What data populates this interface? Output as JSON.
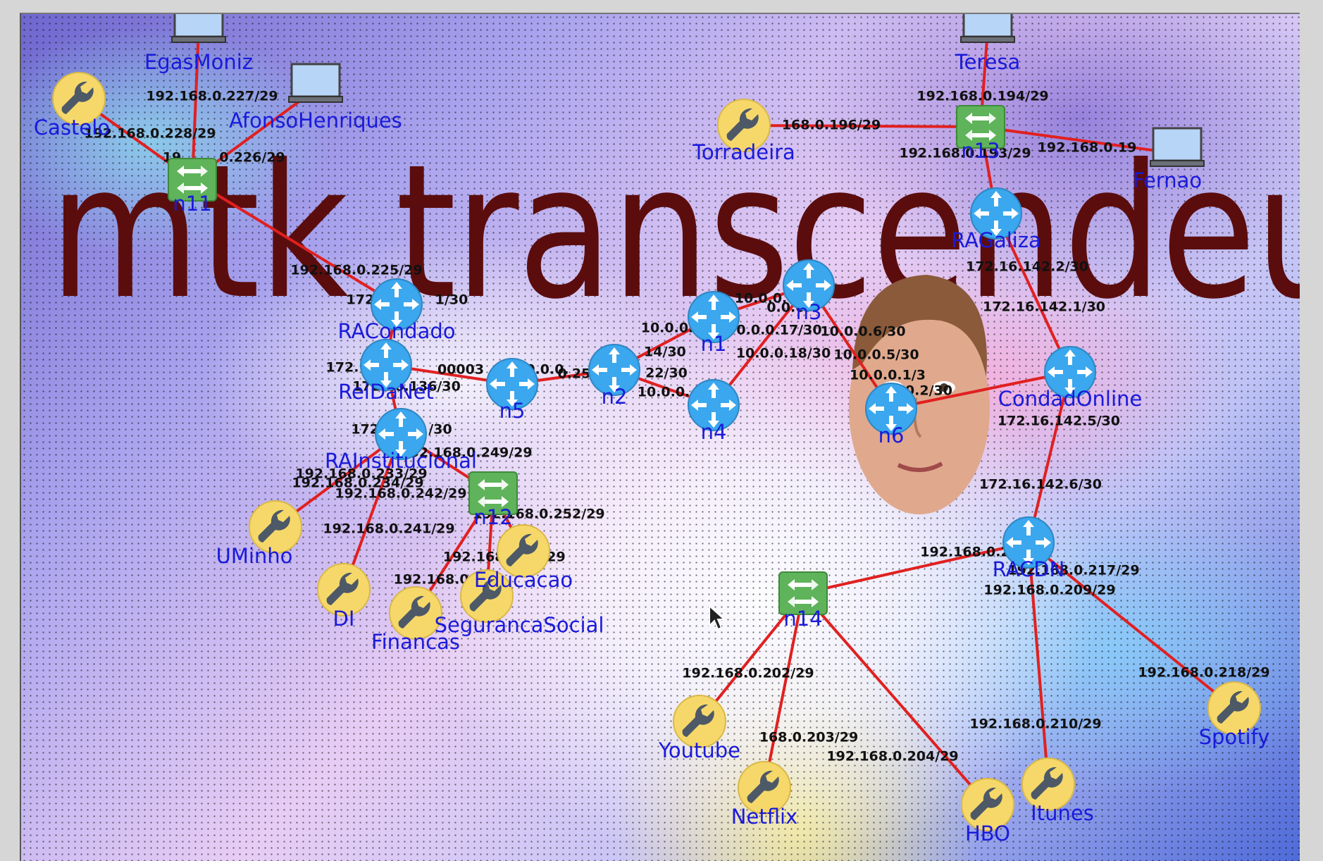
{
  "banner_text": "mtk transcendeu",
  "colors": {
    "link": "#e02020",
    "router": "#3aa7ee",
    "switch": "#5fb35a",
    "server": "#f6d86a",
    "pc": "#b7d5f7",
    "label": "#1a1adb",
    "banner": "#5b0d0d"
  },
  "nodes": [
    {
      "id": "EgasMoniz",
      "name": "EgasMoniz",
      "type": "pc",
      "icon": "pc-icon"
    },
    {
      "id": "AfonsoHenriques",
      "name": "AfonsoHenriques",
      "type": "pc",
      "icon": "pc-icon"
    },
    {
      "id": "Castelo",
      "name": "Castelo",
      "type": "server",
      "icon": "wrench-icon"
    },
    {
      "id": "n11",
      "name": "n11",
      "type": "switch",
      "icon": "switch-icon"
    },
    {
      "id": "Torradeira",
      "name": "Torradeira",
      "type": "server",
      "icon": "wrench-icon"
    },
    {
      "id": "Teresa",
      "name": "Teresa",
      "type": "pc",
      "icon": "pc-icon"
    },
    {
      "id": "n13",
      "name": "n13",
      "type": "switch",
      "icon": "switch-icon"
    },
    {
      "id": "Fernao",
      "name": "Fernao",
      "type": "pc",
      "icon": "pc-icon"
    },
    {
      "id": "RAGaliza",
      "name": "RAGaliza",
      "type": "router",
      "icon": "router-icon"
    },
    {
      "id": "RACondado",
      "name": "RACondado",
      "type": "router",
      "icon": "router-icon"
    },
    {
      "id": "ReiDaNet",
      "name": "ReiDaNet",
      "type": "router",
      "icon": "router-icon"
    },
    {
      "id": "n5",
      "name": "n5",
      "type": "router",
      "icon": "router-icon"
    },
    {
      "id": "n2",
      "name": "n2",
      "type": "router",
      "icon": "router-icon"
    },
    {
      "id": "n1",
      "name": "n1",
      "type": "router",
      "icon": "router-icon"
    },
    {
      "id": "n3",
      "name": "n3",
      "type": "router",
      "icon": "router-icon"
    },
    {
      "id": "n4",
      "name": "n4",
      "type": "router",
      "icon": "router-icon"
    },
    {
      "id": "n6",
      "name": "n6",
      "type": "router",
      "icon": "router-icon"
    },
    {
      "id": "CondadOnline",
      "name": "CondadOnline",
      "type": "router",
      "icon": "router-icon"
    },
    {
      "id": "RAInstitucional",
      "name": "RAInstitucional",
      "type": "router",
      "icon": "router-icon"
    },
    {
      "id": "n12",
      "name": "n12",
      "type": "switch",
      "icon": "switch-icon"
    },
    {
      "id": "UMinho",
      "name": "UMinho",
      "type": "server",
      "icon": "wrench-icon"
    },
    {
      "id": "DI",
      "name": "DI",
      "type": "server",
      "icon": "wrench-icon"
    },
    {
      "id": "Financas",
      "name": "Financas",
      "type": "server",
      "icon": "wrench-icon"
    },
    {
      "id": "SegurancaSocial",
      "name": "SegurancaSocial",
      "type": "server",
      "icon": "wrench-icon"
    },
    {
      "id": "Educacao",
      "name": "Educacao",
      "type": "server",
      "icon": "wrench-icon"
    },
    {
      "id": "RACDN",
      "name": "RACDN",
      "type": "router",
      "icon": "router-icon"
    },
    {
      "id": "n14",
      "name": "n14",
      "type": "switch",
      "icon": "switch-icon"
    },
    {
      "id": "Youtube",
      "name": "Youtube",
      "type": "server",
      "icon": "wrench-icon"
    },
    {
      "id": "Netflix",
      "name": "Netflix",
      "type": "server",
      "icon": "wrench-icon"
    },
    {
      "id": "HBO",
      "name": "HBO",
      "type": "server",
      "icon": "wrench-icon"
    },
    {
      "id": "Itunes",
      "name": "Itunes",
      "type": "server",
      "icon": "wrench-icon"
    },
    {
      "id": "Spotify",
      "name": "Spotify",
      "type": "server",
      "icon": "wrench-icon"
    }
  ],
  "links": [
    [
      "EgasMoniz",
      "n11"
    ],
    [
      "AfonsoHenriques",
      "n11"
    ],
    [
      "Castelo",
      "n11"
    ],
    [
      "n11",
      "RACondado"
    ],
    [
      "Teresa",
      "n13"
    ],
    [
      "Torradeira",
      "n13"
    ],
    [
      "n13",
      "Fernao"
    ],
    [
      "n13",
      "RAGaliza"
    ],
    [
      "RAGaliza",
      "CondadOnline"
    ],
    [
      "RACondado",
      "ReiDaNet"
    ],
    [
      "ReiDaNet",
      "n5"
    ],
    [
      "n5",
      "n2"
    ],
    [
      "n2",
      "n1"
    ],
    [
      "n2",
      "n4"
    ],
    [
      "n1",
      "n3"
    ],
    [
      "n4",
      "n3"
    ],
    [
      "n3",
      "n6"
    ],
    [
      "n6",
      "CondadOnline"
    ],
    [
      "ReiDaNet",
      "RAInstitucional"
    ],
    [
      "RAInstitucional",
      "n12"
    ],
    [
      "RAInstitucional",
      "UMinho"
    ],
    [
      "RAInstitucional",
      "DI"
    ],
    [
      "n12",
      "Educacao"
    ],
    [
      "n12",
      "Financas"
    ],
    [
      "n12",
      "SegurancaSocial"
    ],
    [
      "CondadOnline",
      "RACDN"
    ],
    [
      "RACDN",
      "n14"
    ],
    [
      "RACDN",
      "Itunes"
    ],
    [
      "RACDN",
      "Spotify"
    ],
    [
      "n14",
      "Youtube"
    ],
    [
      "n14",
      "Netflix"
    ],
    [
      "n14",
      "HBO"
    ]
  ],
  "address_labels": [
    "192.168.0.227/29",
    "192.168.0.228/29",
    "19",
    "0.226/29",
    "192.168.0.225/29",
    "168.0.196/29",
    "192.168.0.194/29",
    "192.168.0.193/29",
    "192.168.0.19",
    "172.16.142.2/30",
    "172.16.142.1/30",
    "172.16.142.5/30",
    "172.16.142.6/30",
    "172.",
    "1/30",
    "172.",
    "172.16.136/30",
    "172.16",
    "/30",
    "00003",
    "0.0.0.",
    "0.25/3",
    "10.0.0.",
    "14/30",
    "22/30",
    "10.0.0.",
    "10.0.0.",
    "0.0.0.",
    "0.0.0.17/30",
    "10.0.0.18/30",
    "10.0.0.6/30",
    "10.0.0.5/30",
    "10.0.0.1/3",
    "0.0.0.2/30",
    "192.168.0.233/29",
    "192.168.0.234/29",
    "192.168.0.242/29",
    "192.168.0.249/29",
    "192.168.0.241/29",
    "192.168.0.252/29",
    "192.168.0.",
    "/29",
    "192.168.0.25",
    "192.168.0.2",
    "192.168.0.217/29",
    "192.168.0.209/29",
    "192.168.0.202/29",
    "168.0.203/29",
    "192.168.0.204/29",
    "192.168.0.210/29",
    "192.168.0.218/29"
  ]
}
